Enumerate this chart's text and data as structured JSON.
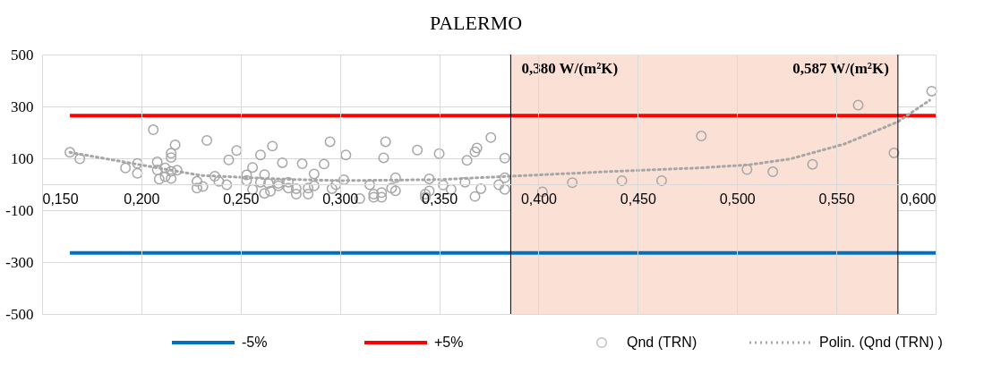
{
  "chart_data": {
    "type": "scatter",
    "title": "PALERMO",
    "xlim": [
      0.15,
      0.6
    ],
    "xticks": [
      {
        "value": 0.15,
        "label": "0,150"
      },
      {
        "value": 0.2,
        "label": "0,200"
      },
      {
        "value": 0.25,
        "label": "0,250"
      },
      {
        "value": 0.3,
        "label": "0,300"
      },
      {
        "value": 0.35,
        "label": "0,350"
      },
      {
        "value": 0.4,
        "label": "0,400"
      },
      {
        "value": 0.45,
        "label": "0,450"
      },
      {
        "value": 0.5,
        "label": "0,500"
      },
      {
        "value": 0.55,
        "label": "0,550"
      },
      {
        "value": 0.6,
        "label": "0,600"
      }
    ],
    "ylim": [
      -500,
      500
    ],
    "yticks": [
      -500,
      -300,
      -100,
      100,
      300,
      500
    ],
    "grid": true,
    "legend": "bottom",
    "series": [
      {
        "name": "-5%",
        "type": "line",
        "color": "#0070c0",
        "line_style": "solid",
        "x": [
          0.164,
          0.6
        ],
        "values": [
          -265,
          -265
        ]
      },
      {
        "name": "+5%",
        "type": "line",
        "color": "#ff0000",
        "line_style": "solid",
        "x": [
          0.164,
          0.6
        ],
        "values": [
          265,
          265
        ]
      },
      {
        "name": "Qnd (TRN)",
        "color": "#a6a6a6",
        "marker": "circle",
        "x": [
          0.164,
          0.169,
          0.192,
          0.198,
          0.198,
          0.206,
          0.208,
          0.208,
          0.209,
          0.212,
          0.212,
          0.215,
          0.215,
          0.217,
          0.218,
          0.215,
          0.215,
          0.228,
          0.228,
          0.231,
          0.233,
          0.237,
          0.239,
          0.243,
          0.244,
          0.248,
          0.253,
          0.256,
          0.256,
          0.253,
          0.26,
          0.26,
          0.262,
          0.262,
          0.264,
          0.265,
          0.266,
          0.269,
          0.269,
          0.271,
          0.274,
          0.274,
          0.278,
          0.278,
          0.281,
          0.284,
          0.284,
          0.287,
          0.287,
          0.292,
          0.295,
          0.296,
          0.298,
          0.302,
          0.303,
          0.31,
          0.315,
          0.317,
          0.317,
          0.321,
          0.321,
          0.322,
          0.323,
          0.326,
          0.328,
          0.328,
          0.339,
          0.343,
          0.343,
          0.345,
          0.345,
          0.35,
          0.352,
          0.356,
          0.363,
          0.364,
          0.368,
          0.369,
          0.368,
          0.371,
          0.376,
          0.38,
          0.383,
          0.383,
          0.383,
          0.402,
          0.417,
          0.442,
          0.462,
          0.482,
          0.505,
          0.518,
          0.538,
          0.561,
          0.579,
          0.598
        ],
        "values": [
          123,
          98,
          63,
          80,
          42,
          210,
          86,
          55,
          20,
          63,
          29,
          103,
          120,
          152,
          54,
          22,
          50,
          11,
          -15,
          -9,
          169,
          31,
          11,
          -2,
          94,
          130,
          15,
          65,
          -20,
          36,
          8,
          113,
          37,
          -35,
          3,
          -27,
          147,
          3,
          -6,
          83,
          8,
          -15,
          -17,
          -38,
          79,
          -15,
          -38,
          40,
          -6,
          78,
          164,
          -17,
          -2,
          17,
          113,
          -55,
          -2,
          -38,
          -50,
          -32,
          -50,
          102,
          164,
          -15,
          25,
          -25,
          132,
          -38,
          -50,
          21,
          -26,
          118,
          -3,
          -20,
          8,
          92,
          125,
          140,
          -47,
          -17,
          180,
          -2,
          101,
          25,
          -20,
          -29,
          6,
          14,
          14,
          186,
          57,
          48,
          77,
          305,
          121,
          359
        ]
      },
      {
        "name": "Polin. (Qnd (TRN)  )",
        "type": "line",
        "color": "#a6a6a6",
        "line_style": "dotted",
        "x": [
          0.164,
          0.198,
          0.23,
          0.253,
          0.274,
          0.3,
          0.35,
          0.386,
          0.436,
          0.481,
          0.506,
          0.527,
          0.554,
          0.581,
          0.597
        ],
        "values": [
          123,
          77,
          34,
          26,
          19,
          14,
          18,
          31,
          49,
          63,
          75,
          98,
          155,
          241,
          324
        ]
      }
    ],
    "ref_lines": [
      {
        "axis": "x",
        "value": 0.386,
        "label": "0,380 W/(m²K)",
        "color": "#000000"
      },
      {
        "axis": "x",
        "value": 0.581,
        "label": "0,587 W/(m²K)",
        "color": "#000000"
      }
    ],
    "bands": [
      {
        "axis": "x",
        "from": 0.386,
        "to": 0.581,
        "color": "#fbe0d6"
      }
    ]
  }
}
